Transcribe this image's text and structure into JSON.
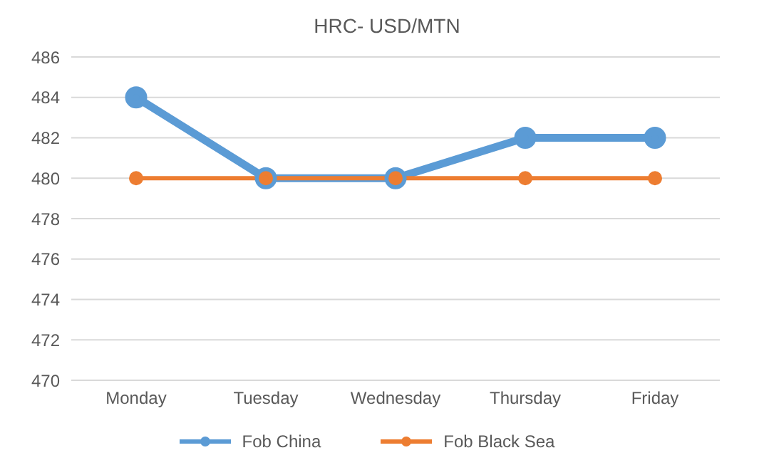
{
  "chart_data": {
    "type": "line",
    "title": "HRC- USD/MTN",
    "categories": [
      "Monday",
      "Tuesday",
      "Wednesday",
      "Thursday",
      "Friday"
    ],
    "series": [
      {
        "name": "Fob China",
        "color": "#5b9bd5",
        "values": [
          484,
          480,
          480,
          482,
          482
        ]
      },
      {
        "name": "Fob Black Sea",
        "color": "#ed7d31",
        "values": [
          480,
          480,
          480,
          480,
          480
        ]
      }
    ],
    "ylim": [
      470,
      486
    ],
    "yticks": [
      470,
      472,
      474,
      476,
      478,
      480,
      482,
      484,
      486
    ],
    "grid": "y",
    "legend": "bottom",
    "marker": "circle",
    "line_style": "solid"
  }
}
